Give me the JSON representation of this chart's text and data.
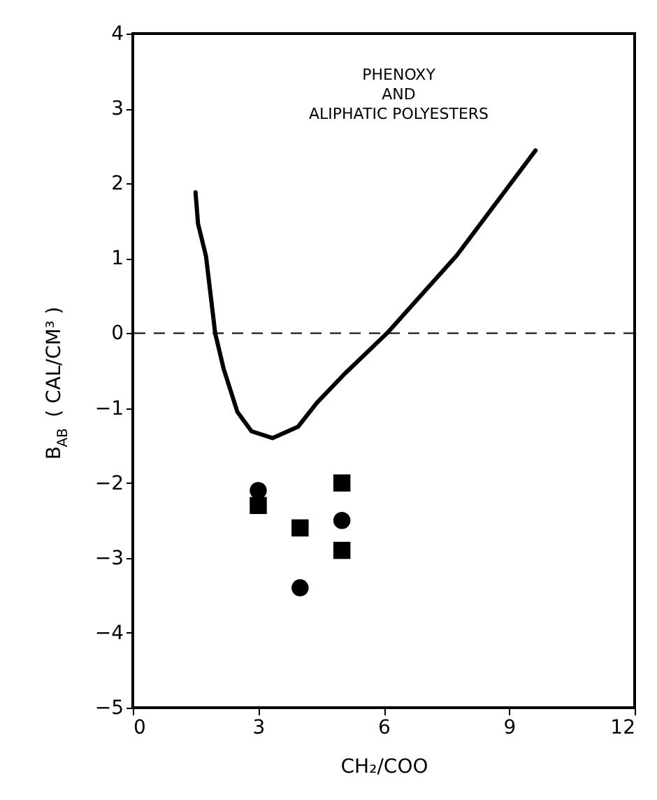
{
  "chart_data": {
    "type": "scatter",
    "xlabel": "CH₂/COO",
    "ylabel": "B$_{AB}$ ( CAL/CM³ )",
    "annotations": [
      "PHENOXY\nAND\nALIPHATIC POLYESTERS"
    ],
    "xlim": [
      0,
      12
    ],
    "xticks": [
      0,
      3,
      6,
      9,
      12
    ],
    "ylim": [
      -5,
      4
    ],
    "yticks": [
      -5,
      -4,
      -3,
      -2,
      -1,
      0,
      1,
      2,
      3,
      4
    ],
    "grid": false,
    "ref_lines": [
      {
        "axis": "y",
        "value": 0,
        "label": null,
        "color": "#000000",
        "line_style": "dashed"
      }
    ],
    "series": [
      {
        "type": "line",
        "color": "#000000",
        "marker": "none",
        "line_style": "solid",
        "x": [
          1.5,
          1.56,
          1.75,
          1.97,
          2.17,
          2.5,
          2.84,
          3.34,
          3.95,
          4.4,
          5.07,
          6.08,
          7.75,
          9.63
        ],
        "values": [
          1.88,
          1.46,
          1.03,
          0.0,
          -0.47,
          -1.05,
          -1.31,
          -1.4,
          -1.25,
          -0.93,
          -0.54,
          0.0,
          1.04,
          2.44
        ]
      },
      {
        "type": "scatter",
        "color": "#000000",
        "marker": "circle",
        "x": [
          3,
          4,
          5
        ],
        "values": [
          -2.1,
          -3.4,
          -2.5
        ]
      },
      {
        "type": "scatter",
        "color": "#000000",
        "marker": "square",
        "x": [
          3,
          4,
          5,
          5
        ],
        "values": [
          -2.3,
          -2.6,
          -2.0,
          -2.9
        ]
      }
    ]
  }
}
